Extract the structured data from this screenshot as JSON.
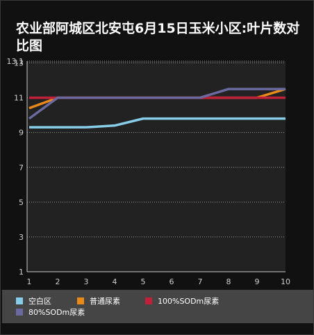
{
  "title": "农业部阿城区北安屯6月15日玉米小区:叶片数对比图",
  "chart_data": {
    "type": "line",
    "title": "农业部阿城区北安屯6月15日玉米小区:叶片数对比图",
    "xlabel": "",
    "ylabel": "",
    "x": [
      1,
      2,
      3,
      4,
      5,
      6,
      7,
      8,
      9,
      10
    ],
    "ylim": [
      1,
      13.1
    ],
    "yticks": [
      "1",
      "3",
      "5",
      "7",
      "9",
      "11",
      "13",
      "13.1"
    ],
    "grid": true,
    "legend_position": "bottom",
    "series": [
      {
        "name": "空白区",
        "color": "#87cdea",
        "values": [
          9.3,
          9.3,
          9.3,
          9.4,
          9.8,
          9.8,
          9.8,
          9.8,
          9.8,
          9.8
        ]
      },
      {
        "name": "普通尿素",
        "color": "#e8891a",
        "values": [
          10.4,
          11.0,
          11.0,
          11.0,
          11.0,
          11.0,
          11.0,
          11.0,
          11.0,
          11.5
        ]
      },
      {
        "name": "100%SODm尿素",
        "color": "#c0203a",
        "values": [
          11.0,
          11.0,
          11.0,
          11.0,
          11.0,
          11.0,
          11.0,
          11.0,
          11.0,
          11.0
        ]
      },
      {
        "name": "80%SODm尿素",
        "color": "#6a6aa0",
        "values": [
          9.8,
          11.0,
          11.0,
          11.0,
          11.0,
          11.0,
          11.0,
          11.5,
          11.5,
          11.5
        ]
      }
    ]
  }
}
